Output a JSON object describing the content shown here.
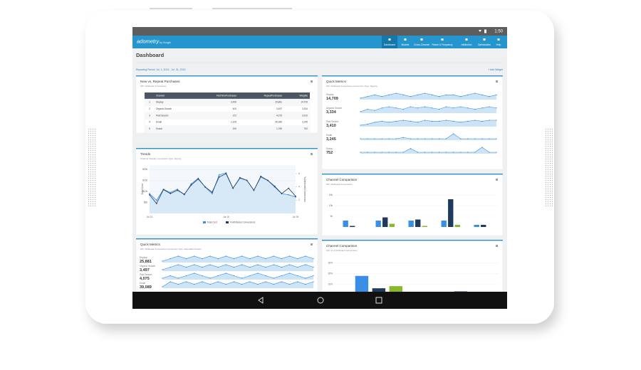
{
  "status_bar": {
    "time": "1:50"
  },
  "app_bar": {
    "logo": "adometry",
    "logo_sub": "by Google",
    "nav": [
      "Dashboard",
      "Models",
      "Cross-Channel",
      "Reach & Frequency",
      "Attribution",
      "Optimization",
      "Help"
    ]
  },
  "header": {
    "title": "Dashboard",
    "reporting_period": "Reporting Period: Jul. 1, 2013 - Jul. 31, 2013",
    "add_widget": "+ Add Widget"
  },
  "purchases_table": {
    "title": "New vs. Repeat Purchases",
    "subtitle": "KPI: Attributed Conversions",
    "columns": [
      "Channel",
      "FirstTimePurchases",
      "RepeatPurchases",
      "Weights"
    ],
    "rows": [
      [
        "1",
        "Display",
        "3,495",
        "25,881",
        "14,709"
      ],
      [
        "2",
        "Organic Search",
        "400",
        "3,497",
        "3,334"
      ],
      [
        "3",
        "Paid Search",
        "372",
        "4,075",
        "3,410"
      ],
      [
        "4",
        "Email",
        "2,105",
        "39,089",
        "3,245"
      ],
      [
        "5",
        "Social",
        "200",
        "1,789",
        "752"
      ]
    ]
  },
  "trends": {
    "title": "Trends",
    "subtitle": "Channel: Display   Conversion Type: SignUp",
    "chart": {
      "type": "line",
      "categories": [
        "Jul 01",
        null,
        null,
        null,
        null,
        null,
        null,
        null,
        null,
        null,
        null,
        "Jul 15",
        null,
        null,
        null,
        null,
        null,
        null,
        null,
        null,
        null,
        "Jul 29"
      ],
      "series": [
        {
          "name": "Total Cost",
          "color": "#3a8ee6",
          "values": [
            9000,
            6000,
            11000,
            9500,
            11000,
            8500,
            13500,
            16000,
            12000,
            9000,
            17500,
            18500,
            11500,
            16000,
            15000,
            10500,
            16500,
            15000,
            12000,
            9000,
            8500,
            7500
          ]
        },
        {
          "name": "% Attributed Conversions",
          "color": "#1f3a5c",
          "axis": "y2",
          "values": [
            2.8,
            1.5,
            3.6,
            3.0,
            3.5,
            2.9,
            4.3,
            5.2,
            4.0,
            3.2,
            5.5,
            6.0,
            3.8,
            5.4,
            5.0,
            3.5,
            5.6,
            5.0,
            4.1,
            3.0,
            3.8,
            2.6
          ]
        }
      ],
      "ylabel": "Total Cost",
      "y2label": "% Attributed Conversions",
      "ylim": [
        0,
        22000
      ],
      "yticks": [
        {
          "value": 5000,
          "label": "$5k"
        },
        {
          "value": 10000,
          "label": "$10k"
        },
        {
          "value": 15000,
          "label": "$15k"
        },
        {
          "value": 20000,
          "label": "$20k"
        }
      ],
      "y2lim": [
        0,
        7.3
      ],
      "y2ticks": [
        2,
        4,
        6
      ],
      "grid": true
    }
  },
  "quick_metrics_right": {
    "title": "Quick Metrics",
    "subtitle": "KPI: Attributed Conversions   Conversion Type: SignUp",
    "items": [
      {
        "name": "Display",
        "value": "14,709",
        "spark": [
          8,
          9,
          10,
          9,
          10,
          11,
          10,
          9,
          10,
          11,
          10,
          9,
          10,
          10,
          9,
          10,
          11,
          10,
          9,
          10
        ]
      },
      {
        "name": "Organic Search",
        "value": "3,334",
        "spark": [
          5,
          7,
          6,
          8,
          9,
          8,
          7,
          9,
          8,
          9,
          8,
          7,
          9,
          8,
          9,
          8,
          7,
          8,
          9,
          8
        ]
      },
      {
        "name": "Paid Search",
        "value": "3,410",
        "spark": [
          4,
          5,
          7,
          8,
          7,
          8,
          9,
          8,
          7,
          9,
          8,
          8,
          9,
          8,
          7,
          8,
          9,
          8,
          9,
          9
        ]
      },
      {
        "name": "Email",
        "value": "3,245",
        "spark": [
          2,
          2,
          2,
          2,
          2,
          2,
          3,
          2,
          2,
          2,
          2,
          2,
          2,
          6,
          2,
          2,
          2,
          2,
          2,
          2
        ]
      },
      {
        "name": "Social",
        "value": "752",
        "spark": [
          2,
          2,
          2,
          2,
          2,
          2,
          2,
          5,
          2,
          2,
          2,
          2,
          2,
          2,
          2,
          2,
          2,
          6,
          2,
          2
        ]
      }
    ]
  },
  "channel_comparison": {
    "title": "Channel Comparison",
    "subtitle": "KPI: Attributed Conversions",
    "chart": {
      "type": "bar",
      "categories": [
        null,
        null,
        null,
        null,
        null
      ],
      "series": [
        {
          "color": "#3a8ee6",
          "values": [
            3000,
            3000,
            3000,
            3000,
            1000
          ]
        },
        {
          "color": "#1f3a5c",
          "values": [
            500,
            4500,
            3500,
            13000,
            1000
          ]
        },
        {
          "color": "#8ab82b",
          "values": [
            0,
            1500,
            500,
            1000,
            0
          ]
        }
      ],
      "ylim": [
        0,
        17000
      ],
      "yticks": [
        {
          "value": 5000,
          "label": "5k"
        },
        {
          "value": 10000,
          "label": "10k"
        },
        {
          "value": 15000,
          "label": "15k"
        }
      ]
    }
  },
  "channel_comparison_pct": {
    "title": "Channel Comparison",
    "subtitle": "KPI: % of Attributed Conversions",
    "chart": {
      "type": "bar",
      "categories": [
        null,
        null
      ],
      "series": [
        {
          "color": "#3a8ee6",
          "values": [
            18,
            0
          ]
        },
        {
          "color": "#1f3a5c",
          "values": [
            6.5,
            3.6
          ]
        },
        {
          "color": "#8ab82b",
          "values": [
            8.5,
            3.2
          ]
        }
      ],
      "ylim": [
        0,
        35
      ],
      "yticks": [
        {
          "value": 10,
          "label": "10%"
        },
        {
          "value": 20,
          "label": "20%"
        },
        {
          "value": 30,
          "label": "30%"
        }
      ]
    }
  },
  "quick_metrics_left": {
    "title": "Quick Metrics",
    "subtitle": "KPI: Attributed Conversions   Conversion Type: RepeatPurchases",
    "items": [
      {
        "name": "Display",
        "value": "25,881",
        "spark": [
          6,
          7,
          8,
          7,
          8,
          7,
          8,
          7,
          8,
          7,
          8,
          7,
          8,
          7,
          8,
          7,
          8,
          7,
          8,
          7
        ]
      },
      {
        "name": "Organic Search",
        "value": "3,497",
        "spark": [
          5,
          6,
          7,
          6,
          7,
          6,
          7,
          6,
          7,
          6,
          7,
          6,
          7,
          6,
          7,
          6,
          7,
          6,
          7,
          6
        ]
      },
      {
        "name": "Paid Search",
        "value": "4,075",
        "spark": [
          6,
          7,
          6,
          7,
          8,
          7,
          6,
          7,
          8,
          7,
          6,
          7,
          8,
          7,
          6,
          7,
          8,
          7,
          6,
          7
        ]
      },
      {
        "name": "Email",
        "value": "39,089",
        "spark": [
          5,
          7,
          6,
          7,
          6,
          7,
          6,
          7,
          6,
          7,
          6,
          7,
          6,
          7,
          6,
          7,
          6,
          7,
          6,
          7
        ]
      }
    ]
  }
}
